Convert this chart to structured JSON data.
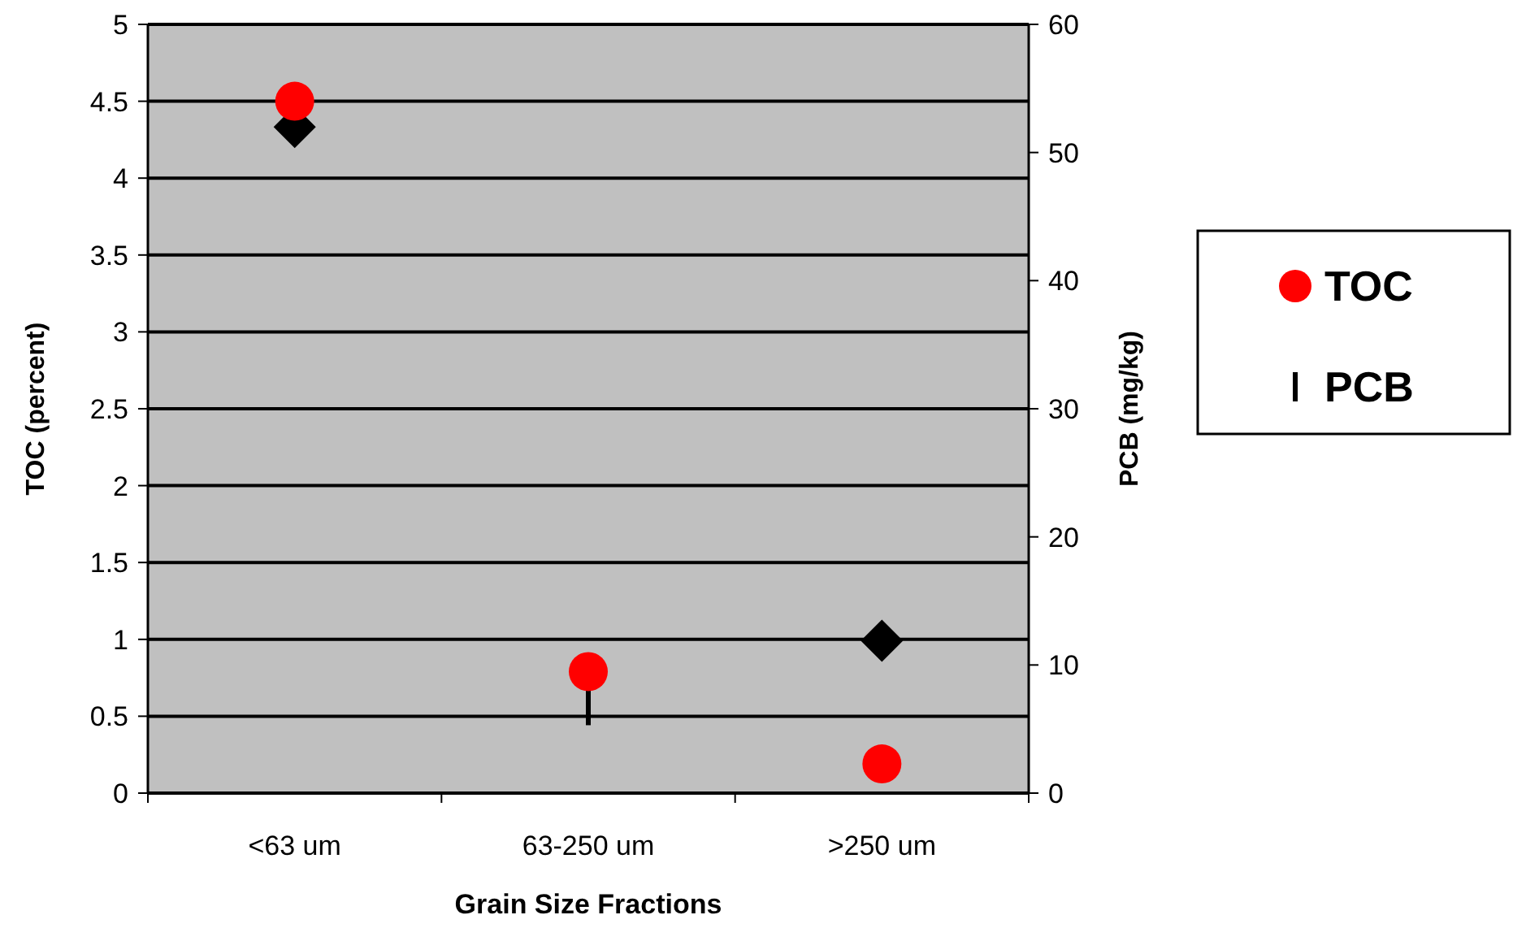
{
  "chart_data": {
    "type": "scatter",
    "xlabel": "Grain Size Fractions",
    "ylabel": "TOC (percent)",
    "y2label": "PCB (mg/kg)",
    "categories": [
      "<63 um",
      "63-250 um",
      ">250 um"
    ],
    "series": [
      {
        "name": "PCB",
        "color": "#000000",
        "marker": "diamond",
        "axis": "y2",
        "values": [
          52.0,
          null,
          11.9
        ]
      },
      {
        "type": "line",
        "color": "#000000",
        "axis": "y2",
        "marker": "none",
        "x": [
          "63-250 um",
          "63-250 um"
        ],
        "values": [
          5.3,
          8.0
        ]
      },
      {
        "name": "TOC",
        "color": "#ff0000",
        "marker": "circle",
        "values": [
          4.5,
          0.79,
          0.19
        ]
      }
    ],
    "ylim": [
      0,
      5
    ],
    "yticks": [
      0,
      0.5,
      1,
      1.5,
      2,
      2.5,
      3,
      3.5,
      4,
      4.5,
      5
    ],
    "y2lim": [
      0,
      60
    ],
    "y2ticks": [
      0,
      10,
      20,
      30,
      40,
      50,
      60
    ],
    "grid": "y",
    "legend": "right"
  }
}
